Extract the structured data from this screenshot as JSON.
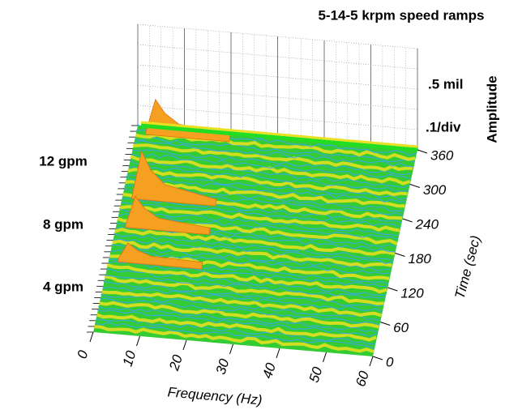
{
  "chart_data": {
    "type": "waterfall",
    "title": "5-14-5 krpm speed ramps",
    "xlabel": "Frequency (Hz)",
    "ylabel": "Time (sec)",
    "zlabel": "Amplitude",
    "xlim": [
      0,
      60
    ],
    "xticks": [
      0,
      10,
      20,
      30,
      40,
      50,
      60
    ],
    "ylim": [
      0,
      360
    ],
    "yticks": [
      0,
      60,
      120,
      180,
      240,
      300,
      360
    ],
    "amplitude_labels": [
      ".5 mil",
      ".1/div"
    ],
    "annotations": [
      "12 gpm",
      "8 gpm",
      "4 gpm"
    ]
  }
}
